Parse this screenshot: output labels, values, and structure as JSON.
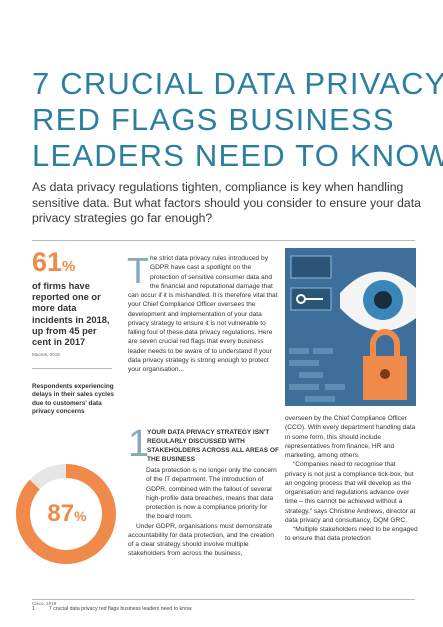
{
  "header": {
    "title_lines": [
      "7 CRUCIAL DATA PRIVACY",
      "RED FLAGS BUSINESS",
      "LEADERS NEED TO KNOW"
    ],
    "subtitle": "As data privacy regulations tighten, compliance is key when handling sensitive data. But what factors should you consider to ensure your data privacy strategies go far enough?"
  },
  "sidebar": {
    "stat1": {
      "number": "61",
      "unit": "%",
      "text": "of firms have reported one or more data incidents in 2018, up from 45 per cent in 2017",
      "source": "Macros, 2019"
    },
    "stat2": {
      "caption": "Respondents experiencing delays in their sales cycles due to customers' data privacy concerns",
      "percent": 87,
      "unit": "%",
      "source": "Cisco, 2019"
    }
  },
  "intro": {
    "drop_cap": "T",
    "text": "he strict data privacy rules introduced by GDPR have cast a spotlight on the protection of sensitive consumer data and the financial and reputational damage that can occur if it is mishandled. It is therefore vital that your Chief Compliance Officer oversees the development and implementation of your data privacy strategy to ensure it is not vulnerable to falling foul of these data privacy regulations. Here are seven crucial red flags that every business leader needs to be aware of to understand if your data privacy strategy is strong enough to protect your organisation..."
  },
  "section1": {
    "number": "1",
    "heading": "YOUR DATA PRIVACY STRATEGY ISN'T REGULARLY DISCUSSED WITH STAKEHOLDERS ACROSS ALL AREAS OF THE BUSINESS",
    "paragraphs": [
      "Data protection is no longer only the concern of the IT department. The introduction of GDPR, combined with the fallout of several high-profile data breaches, means that data protection is now a compliance priority for the board room.",
      "Under GDPR, organisations must demonstrate accountability for data protection, and the creation of a clear strategy should involve multiple stakeholders from across the business,"
    ],
    "continued": [
      "overseen by the Chief Compliance Officer (CCO). With every department handling data in some form, this should include representatives from finance, HR and marketing, among others.",
      "“Companies need to recognise that privacy is not just a compliance tick-box, but an ongoing process that will develop as the organisation and regulations advance over time – this cannot be achieved without a strategy,” says Christine Andrews, director at data privacy and consultancy, DQM GRC.",
      "“Multiple stakeholders need to be engaged to ensure that data protection"
    ]
  },
  "footer": {
    "page": "1",
    "text": "7 crucial data privacy red flags business leaders need to know"
  }
}
